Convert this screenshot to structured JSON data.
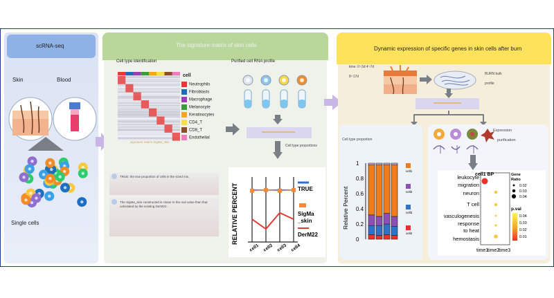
{
  "panel1": {
    "title": "scRNA-seq",
    "skin": "Skin",
    "blood": "Blood",
    "single_cells": "Single cells"
  },
  "panel2": {
    "title": "The signature matrix of skin cells",
    "cell_type_id": "Cell type identification",
    "purified": "Purified cell RNA profile",
    "signature_matrix_label": "signature matrix SigMa_skin",
    "cell_type_proportions": "Cell type proportions",
    "legend_title": "cell",
    "legend_items": [
      {
        "label": "Neutrophils",
        "color": "#e53935"
      },
      {
        "label": "Fibroblasts",
        "color": "#1e6bb8"
      },
      {
        "label": "Macrophage",
        "color": "#9c3fb4"
      },
      {
        "label": "Melanocyte",
        "color": "#3a9d3a"
      },
      {
        "label": "Keratinocytes",
        "color": "#f5a623"
      },
      {
        "label": "CD4_T",
        "color": "#f6e04a"
      },
      {
        "label": "CD8_T",
        "color": "#8b4d2a"
      },
      {
        "label": "Endothelial",
        "color": "#f07cc0"
      }
    ],
    "note1": "TRUE: the true proportion of cells in the sized mix.",
    "note2": "The SigMa_skin constructed is closer to the real value than that calculated by the existing DerM22."
  },
  "line_chart": {
    "ylabel": "RELATIVE PERCENT",
    "categories": [
      "cell1",
      "cell2",
      "cell3",
      "cell4"
    ],
    "legend": [
      {
        "label": "TRUE",
        "color": "#2f6fd6"
      },
      {
        "label": "SigMa\n_skin",
        "color": "#f08a3c"
      },
      {
        "label": "DerM22",
        "color": "#e53935"
      }
    ]
  },
  "panel3": {
    "title": "Dynamic expression of specific genes in skin cells after burn",
    "time_label": "time: 0~3d  4~7d",
    "time_label2": "8~17d",
    "burn_bulk": "BURN bulk",
    "profile": "profile",
    "cell_type_proportion": "Cell type proportion",
    "expression": "Expression",
    "purification": "purification"
  },
  "stacked_bar": {
    "ylabel": "Relative Percent",
    "yticks": [
      "1",
      "0.8",
      "0.6",
      "0.4",
      "0.2",
      "0"
    ],
    "legend": [
      "cell1",
      "cell2",
      "cell3",
      "cell4"
    ]
  },
  "dot_plot": {
    "title": "cell1 BP",
    "terms": [
      "leukocyte",
      "migration",
      "neuron",
      "T cell",
      "vasculogenesis",
      "response",
      "to heat",
      "hemostasis"
    ],
    "x_labels": [
      "time1",
      "time2",
      "time3"
    ],
    "gene_ratio_title": "Gene\nRatio",
    "gene_ratio_vals": [
      "0.02",
      "0.03",
      "0.04"
    ],
    "pval_title": "p.val",
    "pval_ticks": [
      "0.04",
      "0.03",
      "0.02",
      "0.01"
    ]
  },
  "chart_data": [
    {
      "type": "line",
      "ylabel": "RELATIVE PERCENT",
      "categories": [
        "cell1",
        "cell2",
        "cell3",
        "cell4"
      ],
      "series": [
        {
          "name": "TRUE",
          "values": [
            0.8,
            0.8,
            0.8,
            0.8
          ]
        },
        {
          "name": "SigMa_skin",
          "values": [
            0.79,
            0.8,
            0.79,
            0.8
          ]
        },
        {
          "name": "DerM22",
          "values": [
            0.35,
            0.2,
            0.45,
            0.35
          ]
        }
      ],
      "ylim": [
        0,
        1
      ]
    },
    {
      "type": "bar",
      "ylabel": "Relative Percent",
      "categories": [
        "",
        "",
        "",
        ""
      ],
      "series": [
        {
          "name": "red",
          "values": [
            0.06,
            0.05,
            0.06,
            0.05
          ]
        },
        {
          "name": "blue",
          "values": [
            0.12,
            0.13,
            0.14,
            0.12
          ]
        },
        {
          "name": "purple",
          "values": [
            0.14,
            0.12,
            0.14,
            0.13
          ]
        },
        {
          "name": "orange",
          "values": [
            0.66,
            0.68,
            0.64,
            0.68
          ]
        },
        {
          "name": "lavender",
          "values": [
            0.02,
            0.02,
            0.02,
            0.02
          ]
        }
      ],
      "ylim": [
        0,
        1
      ]
    }
  ]
}
